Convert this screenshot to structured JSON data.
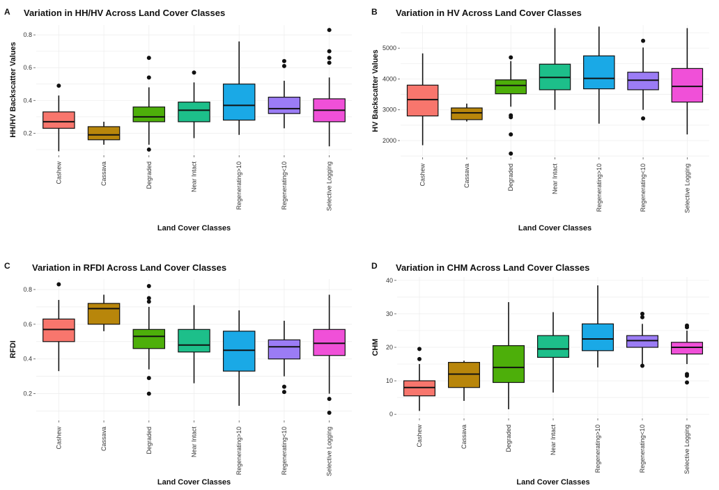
{
  "chart_data": [
    {
      "type": "box",
      "panel_letter": "A",
      "title": "Variation in HH/HV Across Land Cover Classes",
      "xlabel": "Land Cover Classes",
      "ylabel": "HH/HV Backscatter Values",
      "ylim": [
        0.07,
        0.86
      ],
      "yticks": [
        0.2,
        0.4,
        0.6,
        0.8
      ],
      "ytick_labels": [
        "0.2",
        "0.4",
        "0.6",
        "0.8"
      ],
      "grid": true,
      "categories": [
        "Cashew",
        "Cassava",
        "Degraded",
        "Near Intact",
        "Regenerating>10",
        "Regenerating<10",
        "Selective Logging"
      ],
      "colors": [
        "#f8766d",
        "#b8860b",
        "#4daf0a",
        "#1dbf8a",
        "#1aa9e6",
        "#9b7cf5",
        "#f050d8"
      ],
      "boxes": [
        {
          "whisker_low": 0.09,
          "q1": 0.23,
          "median": 0.27,
          "q3": 0.33,
          "whisker_high": 0.43,
          "outliers": [
            0.49
          ]
        },
        {
          "whisker_low": 0.13,
          "q1": 0.16,
          "median": 0.19,
          "q3": 0.24,
          "whisker_high": 0.27,
          "outliers": []
        },
        {
          "whisker_low": 0.13,
          "q1": 0.27,
          "median": 0.3,
          "q3": 0.36,
          "whisker_high": 0.48,
          "outliers": [
            0.1,
            0.54,
            0.66
          ]
        },
        {
          "whisker_low": 0.17,
          "q1": 0.27,
          "median": 0.34,
          "q3": 0.39,
          "whisker_high": 0.51,
          "outliers": [
            0.57
          ]
        },
        {
          "whisker_low": 0.19,
          "q1": 0.28,
          "median": 0.37,
          "q3": 0.5,
          "whisker_high": 0.76,
          "outliers": []
        },
        {
          "whisker_low": 0.23,
          "q1": 0.32,
          "median": 0.35,
          "q3": 0.42,
          "whisker_high": 0.52,
          "outliers": [
            0.61,
            0.64
          ]
        },
        {
          "whisker_low": 0.12,
          "q1": 0.27,
          "median": 0.34,
          "q3": 0.41,
          "whisker_high": 0.54,
          "outliers": [
            0.63,
            0.66,
            0.7,
            0.83
          ]
        }
      ]
    },
    {
      "type": "box",
      "panel_letter": "B",
      "title": "Variation in HV Across Land Cover Classes",
      "xlabel": "Land Cover Classes",
      "ylabel": "HV Backscatter Values",
      "ylim": [
        1480,
        5750
      ],
      "yticks": [
        2000,
        3000,
        4000,
        5000
      ],
      "ytick_labels": [
        "2000",
        "3000",
        "4000",
        "5000"
      ],
      "grid": true,
      "categories": [
        "Cashew",
        "Cassava",
        "Degraded",
        "Near Intact",
        "Regenerating>10",
        "Regenerating<10",
        "Selective Logging"
      ],
      "colors": [
        "#f8766d",
        "#b8860b",
        "#4daf0a",
        "#1dbf8a",
        "#1aa9e6",
        "#9b7cf5",
        "#f050d8"
      ],
      "boxes": [
        {
          "whisker_low": 1850,
          "q1": 2800,
          "median": 3330,
          "q3": 3800,
          "whisker_high": 4830,
          "outliers": []
        },
        {
          "whisker_low": 2620,
          "q1": 2680,
          "median": 2900,
          "q3": 3060,
          "whisker_high": 3200,
          "outliers": []
        },
        {
          "whisker_low": 3100,
          "q1": 3520,
          "median": 3790,
          "q3": 3970,
          "whisker_high": 4580,
          "outliers": [
            1580,
            2200,
            2760,
            2820,
            4700
          ]
        },
        {
          "whisker_low": 3000,
          "q1": 3650,
          "median": 4050,
          "q3": 4480,
          "whisker_high": 5650,
          "outliers": []
        },
        {
          "whisker_low": 2550,
          "q1": 3680,
          "median": 4020,
          "q3": 4750,
          "whisker_high": 5700,
          "outliers": []
        },
        {
          "whisker_low": 3000,
          "q1": 3650,
          "median": 3960,
          "q3": 4220,
          "whisker_high": 5020,
          "outliers": [
            2720,
            5240
          ]
        },
        {
          "whisker_low": 2200,
          "q1": 3250,
          "median": 3760,
          "q3": 4340,
          "whisker_high": 5650,
          "outliers": []
        }
      ]
    },
    {
      "type": "box",
      "panel_letter": "C",
      "title": "Variation in RFDI Across Land Cover Classes",
      "xlabel": "Land Cover Classes",
      "ylabel": "RFDI",
      "ylim": [
        0.05,
        0.86
      ],
      "yticks": [
        0.2,
        0.4,
        0.6,
        0.8
      ],
      "ytick_labels": [
        "0.2",
        "0.4",
        "0.6",
        "0.8"
      ],
      "grid": true,
      "categories": [
        "Cashew",
        "Cassava",
        "Degraded",
        "Near Intact",
        "Regenerating>10",
        "Regenerating<10",
        "Selective Logging"
      ],
      "colors": [
        "#f8766d",
        "#b8860b",
        "#4daf0a",
        "#1dbf8a",
        "#1aa9e6",
        "#9b7cf5",
        "#f050d8"
      ],
      "boxes": [
        {
          "whisker_low": 0.33,
          "q1": 0.5,
          "median": 0.57,
          "q3": 0.63,
          "whisker_high": 0.74,
          "outliers": [
            0.83
          ]
        },
        {
          "whisker_low": 0.56,
          "q1": 0.6,
          "median": 0.69,
          "q3": 0.72,
          "whisker_high": 0.77,
          "outliers": []
        },
        {
          "whisker_low": 0.34,
          "q1": 0.46,
          "median": 0.53,
          "q3": 0.57,
          "whisker_high": 0.7,
          "outliers": [
            0.2,
            0.29,
            0.73,
            0.75,
            0.82
          ]
        },
        {
          "whisker_low": 0.26,
          "q1": 0.44,
          "median": 0.48,
          "q3": 0.57,
          "whisker_high": 0.71,
          "outliers": []
        },
        {
          "whisker_low": 0.13,
          "q1": 0.33,
          "median": 0.45,
          "q3": 0.56,
          "whisker_high": 0.68,
          "outliers": []
        },
        {
          "whisker_low": 0.3,
          "q1": 0.4,
          "median": 0.47,
          "q3": 0.51,
          "whisker_high": 0.62,
          "outliers": [
            0.21,
            0.24
          ]
        },
        {
          "whisker_low": 0.2,
          "q1": 0.42,
          "median": 0.49,
          "q3": 0.57,
          "whisker_high": 0.77,
          "outliers": [
            0.09,
            0.17
          ]
        }
      ]
    },
    {
      "type": "box",
      "panel_letter": "D",
      "title": "Variation in CHM Across Land Cover Classes",
      "xlabel": "Land Cover Classes",
      "ylabel": "CHM",
      "ylim": [
        -1,
        41
      ],
      "yticks": [
        0,
        10,
        20,
        30,
        40
      ],
      "ytick_labels": [
        "0",
        "10",
        "20",
        "30",
        "40"
      ],
      "grid": true,
      "categories": [
        "Cashew",
        "Cassava",
        "Degraded",
        "Near Intact",
        "Regenerating>10",
        "Regenerating<10",
        "Selective Logging"
      ],
      "colors": [
        "#f8766d",
        "#b8860b",
        "#4daf0a",
        "#1dbf8a",
        "#1aa9e6",
        "#9b7cf5",
        "#f050d8"
      ],
      "boxes": [
        {
          "whisker_low": 1,
          "q1": 5.5,
          "median": 8,
          "q3": 10,
          "whisker_high": 15,
          "outliers": [
            16.5,
            19.5
          ]
        },
        {
          "whisker_low": 4,
          "q1": 8,
          "median": 12,
          "q3": 15.5,
          "whisker_high": 16,
          "outliers": []
        },
        {
          "whisker_low": 1.5,
          "q1": 9.5,
          "median": 14,
          "q3": 20.5,
          "whisker_high": 33.5,
          "outliers": []
        },
        {
          "whisker_low": 6.5,
          "q1": 17,
          "median": 19.5,
          "q3": 23.5,
          "whisker_high": 30.5,
          "outliers": []
        },
        {
          "whisker_low": 14,
          "q1": 19,
          "median": 22.5,
          "q3": 27,
          "whisker_high": 38.5,
          "outliers": []
        },
        {
          "whisker_low": 15,
          "q1": 20,
          "median": 22,
          "q3": 23.5,
          "whisker_high": 27,
          "outliers": [
            14.5,
            29,
            30
          ]
        },
        {
          "whisker_low": 15,
          "q1": 18,
          "median": 20,
          "q3": 21.5,
          "whisker_high": 25,
          "outliers": [
            9.5,
            11.5,
            12,
            26,
            26.5
          ]
        }
      ]
    }
  ]
}
